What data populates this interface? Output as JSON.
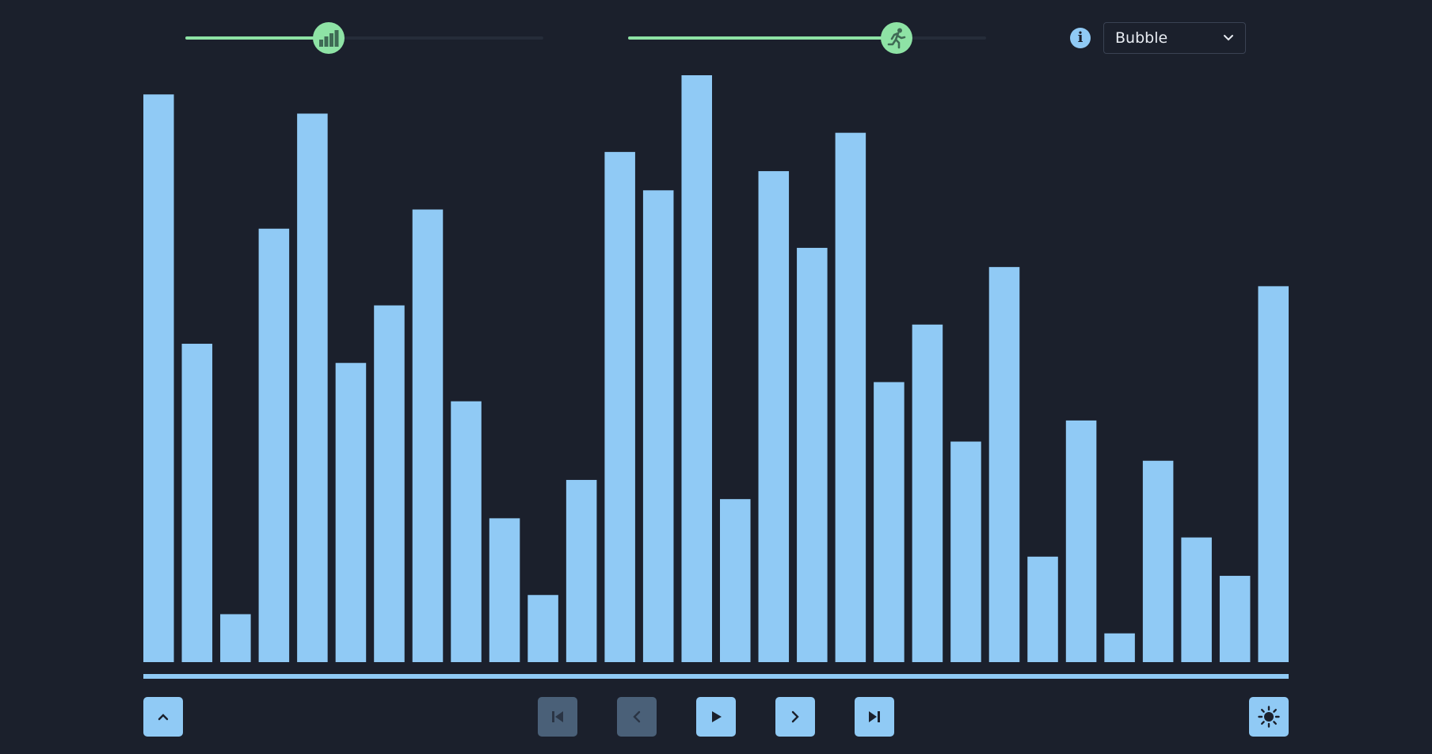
{
  "controls": {
    "size_slider": {
      "value_fraction": 0.4,
      "icon": "bar-chart-icon"
    },
    "speed_slider": {
      "value_fraction": 0.75,
      "icon": "running-person-icon"
    },
    "info_icon": "info-icon",
    "algorithm": {
      "selected": "Bubble",
      "icon": "chevron-down-icon"
    }
  },
  "chart_data": {
    "type": "bar",
    "values": [
      296,
      166,
      25,
      226,
      286,
      156,
      186,
      236,
      136,
      75,
      35,
      95,
      266,
      246,
      306,
      85,
      256,
      216,
      276,
      146,
      176,
      115,
      206,
      55,
      126,
      15,
      105,
      65,
      45,
      196
    ],
    "ylim": [
      0,
      306
    ],
    "bar_color": "#90caf5"
  },
  "playback": {
    "collapse_button": {
      "icon": "chevron-up-icon",
      "enabled": true
    },
    "first_button": {
      "icon": "skip-to-start-icon",
      "enabled": false
    },
    "prev_button": {
      "icon": "chevron-left-icon",
      "enabled": false
    },
    "play_button": {
      "icon": "play-icon",
      "enabled": true
    },
    "next_button": {
      "icon": "chevron-right-icon",
      "enabled": true
    },
    "last_button": {
      "icon": "skip-to-end-icon",
      "enabled": true
    },
    "theme_button": {
      "icon": "sun-icon",
      "enabled": true
    },
    "progress_fraction": 1.0
  },
  "colors": {
    "background": "#1b202c",
    "accent": "#8ee3a5",
    "bar": "#90caf5",
    "button": "#90caf5",
    "button_disabled": "#4a6078"
  }
}
